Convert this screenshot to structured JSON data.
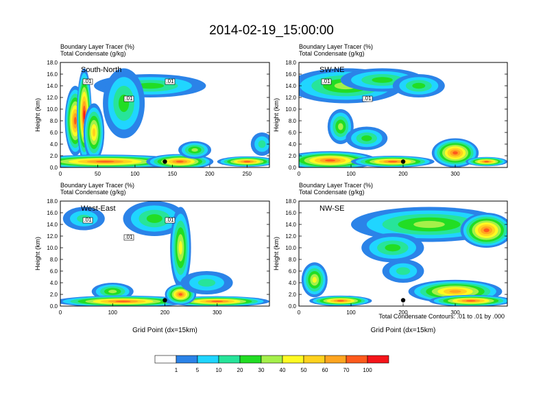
{
  "title": "2014-02-19_15:00:00",
  "panel_header": {
    "line1": "Boundary Layer Tracer   (%)",
    "line2": "Total Condensate   (g/kg)"
  },
  "colorbar": {
    "colors": [
      "#ffffff",
      "#2b83e8",
      "#20d5ff",
      "#27e49a",
      "#22dd24",
      "#a5f04a",
      "#fffa23",
      "#ffd21e",
      "#ffa520",
      "#ff5a1c",
      "#f5151a"
    ],
    "labels": [
      "1",
      "5",
      "10",
      "20",
      "30",
      "40",
      "50",
      "60",
      "70",
      "100"
    ]
  },
  "contour_note": "Total Condensate Contours: .01 to .01 by .000",
  "chart_data": [
    {
      "type": "heatmap",
      "panel_label": "South-North",
      "title": "Boundary Layer Tracer (%) / Total Condensate (g/kg)",
      "ylabel": "Height (km)",
      "xlabel": "",
      "xlim": [
        0,
        280
      ],
      "ylim": [
        0,
        18
      ],
      "x_ticks": [
        "0",
        "50",
        "100",
        "150",
        "200",
        "250"
      ],
      "y_ticks": [
        "0.0",
        "2.0",
        "4.0",
        "6.0",
        "8.0",
        "10.0",
        "12.0",
        "14.0",
        "16.0",
        "18.0"
      ],
      "contour_labels": [
        ".01",
        ".01",
        ".01"
      ],
      "features": [
        {
          "x": 20,
          "z": 8,
          "rx": 14,
          "rz": 6,
          "v": 70
        },
        {
          "x": 32,
          "z": 9,
          "rx": 10,
          "rz": 8,
          "v": 100
        },
        {
          "x": 45,
          "z": 6,
          "rx": 14,
          "rz": 5,
          "v": 55
        },
        {
          "x": 60,
          "z": 1.0,
          "rx": 110,
          "rz": 1.2,
          "v": 85
        },
        {
          "x": 160,
          "z": 1.0,
          "rx": 45,
          "rz": 1.3,
          "v": 90
        },
        {
          "x": 250,
          "z": 1.0,
          "rx": 40,
          "rz": 0.9,
          "v": 80
        },
        {
          "x": 120,
          "z": 14,
          "rx": 75,
          "rz": 2,
          "v": 25
        },
        {
          "x": 85,
          "z": 11,
          "rx": 28,
          "rz": 6,
          "v": 22
        },
        {
          "x": 180,
          "z": 3,
          "rx": 22,
          "rz": 1.5,
          "v": 35
        },
        {
          "x": 270,
          "z": 4,
          "rx": 15,
          "rz": 2,
          "v": 10
        }
      ],
      "marker": {
        "x": 140,
        "z": 1.0
      }
    },
    {
      "type": "heatmap",
      "panel_label": "SW-NE",
      "title": "Boundary Layer Tracer (%) / Total Condensate (g/kg)",
      "ylabel": "Height (km)",
      "xlabel": "",
      "xlim": [
        0,
        400
      ],
      "ylim": [
        0,
        18
      ],
      "x_ticks": [
        "0",
        "100",
        "200",
        "300"
      ],
      "y_ticks": [
        "0.0",
        "2.0",
        "4.0",
        "6.0",
        "8.0",
        "10.0",
        "12.0",
        "14.0",
        "16.0",
        "18.0"
      ],
      "contour_labels": [
        ".01",
        ".01"
      ],
      "features": [
        {
          "x": 90,
          "z": 14,
          "rx": 110,
          "rz": 3,
          "v": 30
        },
        {
          "x": 160,
          "z": 15,
          "rx": 80,
          "rz": 2,
          "v": 25
        },
        {
          "x": 230,
          "z": 14,
          "rx": 50,
          "rz": 2,
          "v": 20
        },
        {
          "x": 60,
          "z": 1.2,
          "rx": 90,
          "rz": 1.6,
          "v": 85
        },
        {
          "x": 300,
          "z": 2.5,
          "rx": 45,
          "rz": 2.5,
          "v": 70
        },
        {
          "x": 180,
          "z": 1.0,
          "rx": 80,
          "rz": 1.0,
          "v": 80
        },
        {
          "x": 360,
          "z": 1.0,
          "rx": 40,
          "rz": 0.8,
          "v": 75
        },
        {
          "x": 80,
          "z": 7,
          "rx": 25,
          "rz": 3,
          "v": 35
        },
        {
          "x": 130,
          "z": 5,
          "rx": 40,
          "rz": 2,
          "v": 20
        }
      ],
      "marker": {
        "x": 200,
        "z": 1.0
      }
    },
    {
      "type": "heatmap",
      "panel_label": "West-East",
      "title": "Boundary Layer Tracer (%) / Total Condensate (g/kg)",
      "ylabel": "Height (km)",
      "xlabel": "Grid Point (dx=15km)",
      "xlim": [
        0,
        400
      ],
      "ylim": [
        0,
        18
      ],
      "x_ticks": [
        "0",
        "100",
        "200",
        "300"
      ],
      "y_ticks": [
        "0.0",
        "2.0",
        "4.0",
        "6.0",
        "8.0",
        "10.0",
        "12.0",
        "14.0",
        "16.0",
        "18.0"
      ],
      "contour_labels": [
        ".01",
        ".01",
        ".01"
      ],
      "features": [
        {
          "x": 45,
          "z": 15,
          "rx": 40,
          "rz": 2,
          "v": 12
        },
        {
          "x": 180,
          "z": 15,
          "rx": 60,
          "rz": 3,
          "v": 25
        },
        {
          "x": 230,
          "z": 10,
          "rx": 20,
          "rz": 7,
          "v": 40
        },
        {
          "x": 100,
          "z": 2.5,
          "rx": 40,
          "rz": 1.5,
          "v": 35
        },
        {
          "x": 120,
          "z": 0.8,
          "rx": 130,
          "rz": 1.0,
          "v": 85
        },
        {
          "x": 300,
          "z": 0.8,
          "rx": 100,
          "rz": 0.9,
          "v": 80
        },
        {
          "x": 230,
          "z": 2.0,
          "rx": 30,
          "rz": 1.8,
          "v": 70
        },
        {
          "x": 280,
          "z": 4,
          "rx": 50,
          "rz": 2,
          "v": 15
        }
      ],
      "marker": {
        "x": 200,
        "z": 1.0
      }
    },
    {
      "type": "heatmap",
      "panel_label": "NW-SE",
      "title": "Boundary Layer Tracer (%) / Total Condensate (g/kg)",
      "ylabel": "Height (km)",
      "xlabel": "Grid Point (dx=15km)",
      "xlim": [
        0,
        400
      ],
      "ylim": [
        0,
        18
      ],
      "x_ticks": [
        "0",
        "100",
        "200",
        "300"
      ],
      "y_ticks": [
        "0.0",
        "2.0",
        "4.0",
        "6.0",
        "8.0",
        "10.0",
        "12.0",
        "14.0",
        "16.0",
        "18.0"
      ],
      "contour_labels": [],
      "features": [
        {
          "x": 250,
          "z": 14,
          "rx": 150,
          "rz": 3,
          "v": 30
        },
        {
          "x": 360,
          "z": 13,
          "rx": 50,
          "rz": 3,
          "v": 70
        },
        {
          "x": 30,
          "z": 4.5,
          "rx": 25,
          "rz": 3,
          "v": 40
        },
        {
          "x": 300,
          "z": 2.5,
          "rx": 90,
          "rz": 2,
          "v": 60
        },
        {
          "x": 330,
          "z": 0.9,
          "rx": 80,
          "rz": 1,
          "v": 90
        },
        {
          "x": 80,
          "z": 0.9,
          "rx": 60,
          "rz": 0.9,
          "v": 80
        },
        {
          "x": 200,
          "z": 6,
          "rx": 40,
          "rz": 2,
          "v": 15
        },
        {
          "x": 180,
          "z": 10,
          "rx": 60,
          "rz": 2.5,
          "v": 20
        }
      ],
      "marker": {
        "x": 200,
        "z": 1.0
      }
    }
  ]
}
